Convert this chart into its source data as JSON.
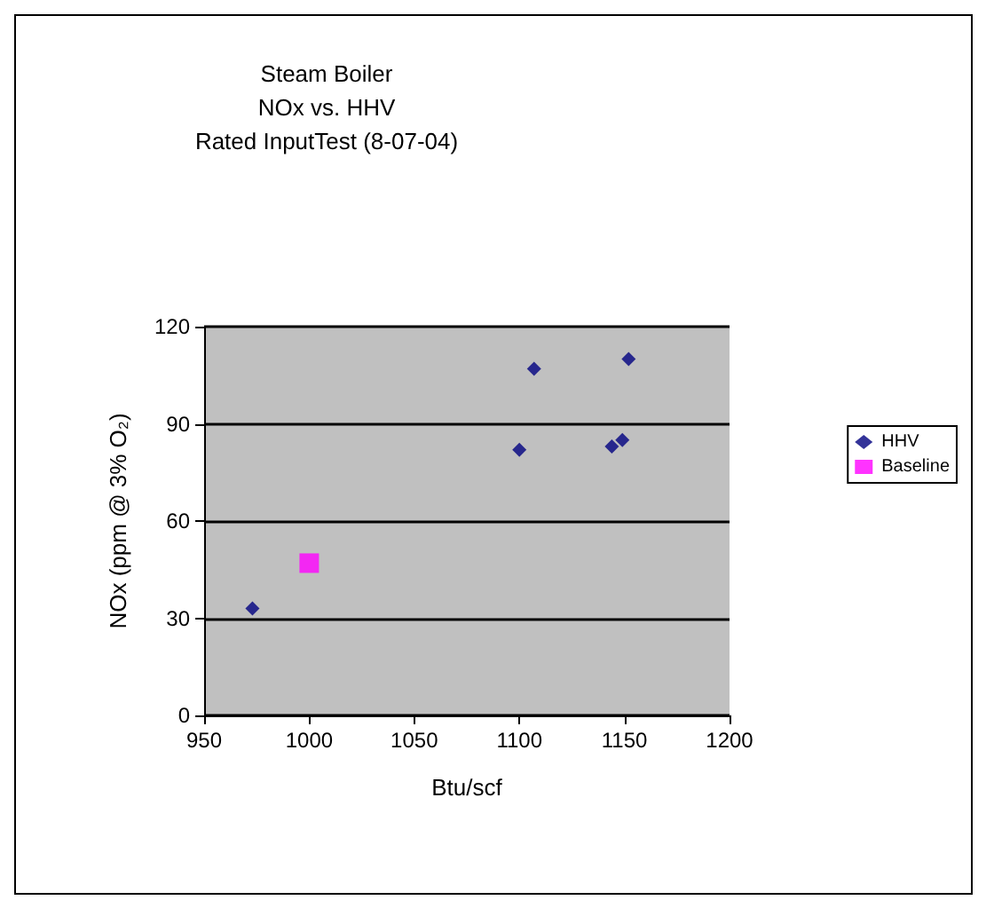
{
  "chart_data": {
    "type": "scatter",
    "title": "Steam Boiler\nNOx vs. HHV\nRated InputTest (8-07-04)",
    "xlabel": "Btu/scf",
    "ylabel": "NOx (ppm @ 3% O₂)",
    "xlim": [
      950,
      1200
    ],
    "xticks": [
      950,
      1000,
      1050,
      1100,
      1150,
      1200
    ],
    "ylim": [
      0,
      120
    ],
    "yticks": [
      0,
      30,
      60,
      90,
      120
    ],
    "grid": "y",
    "legend": "right",
    "marker": "diamond",
    "series": [
      {
        "name": "HHV",
        "color": "#000080",
        "x": [
          973,
          1100,
          1107,
          1144,
          1149,
          1152
        ],
        "values": [
          33,
          82,
          107,
          83,
          85,
          110
        ]
      },
      {
        "name": "Baseline",
        "color": "#ff00ff",
        "marker": "square",
        "x": [
          1000
        ],
        "values": [
          47
        ]
      }
    ]
  }
}
